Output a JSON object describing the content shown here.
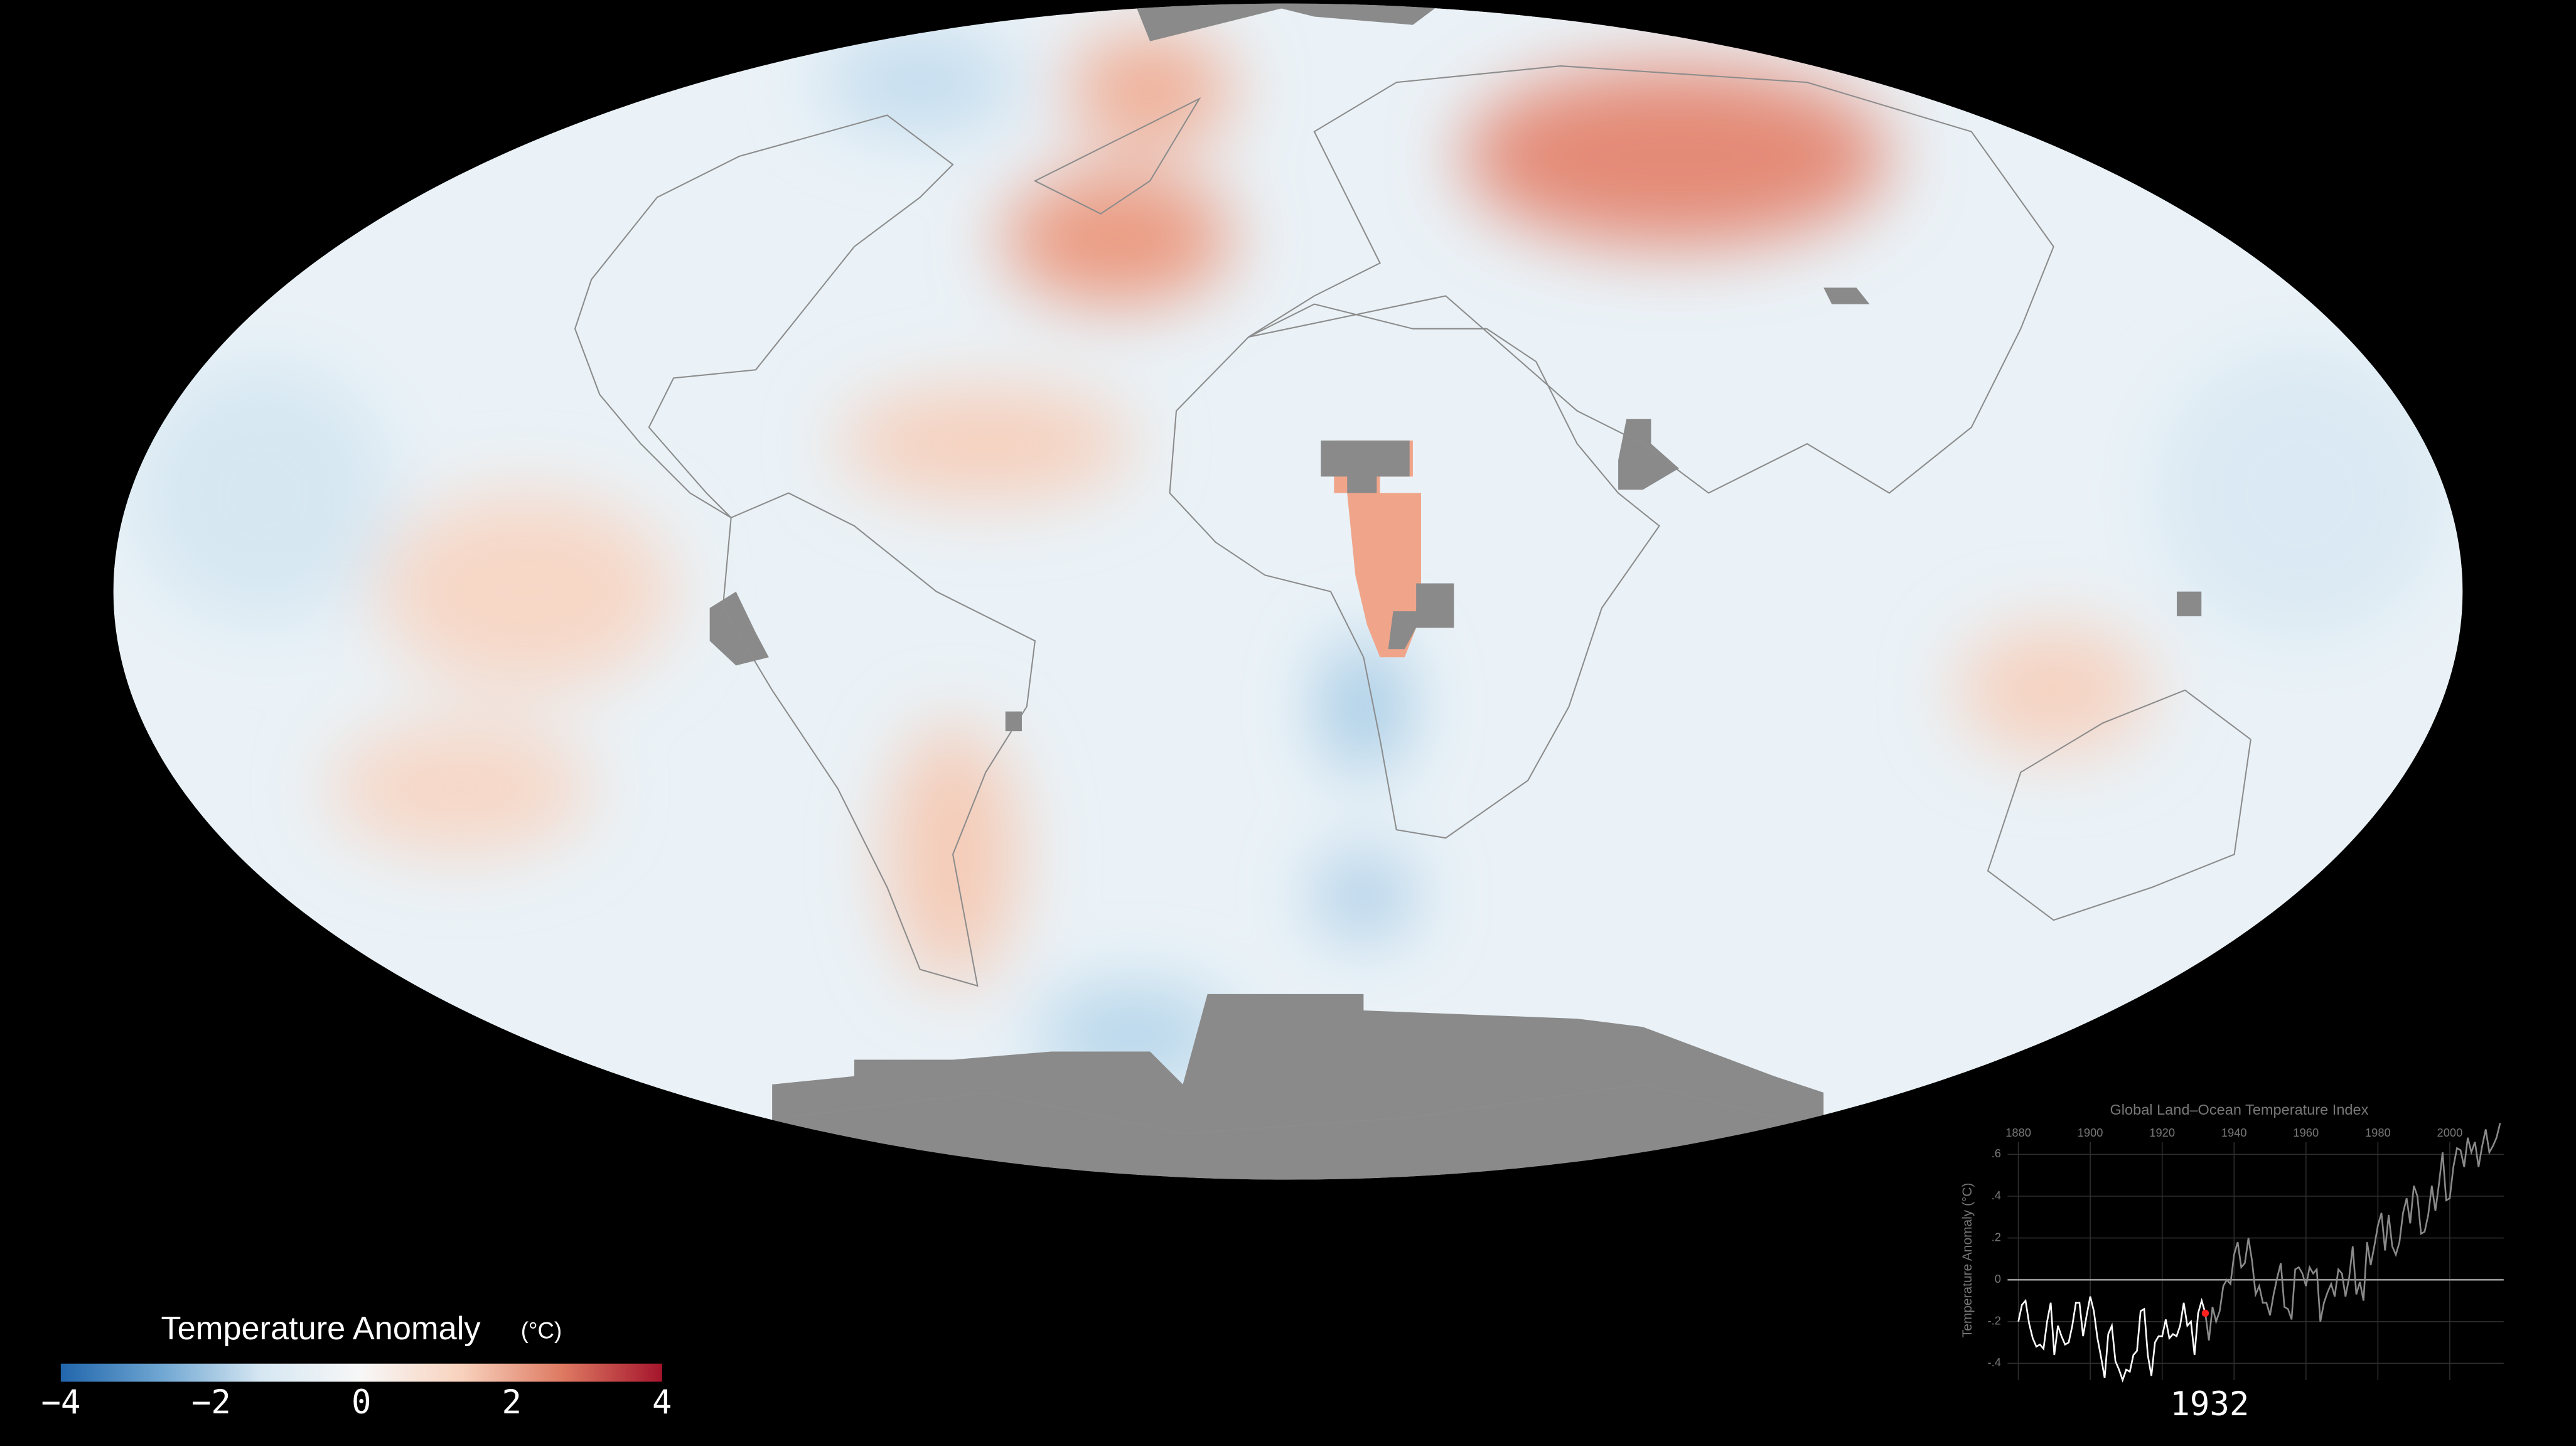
{
  "legend": {
    "title": "Temperature Anomaly",
    "unit": "(°C)",
    "clim": [
      -4,
      4
    ],
    "colors": [
      "#2166ac",
      "#6fa6d2",
      "#d6e7f2",
      "#f7f7f7",
      "#f8d2bd",
      "#de7a62",
      "#a5152c"
    ],
    "ticks": [
      {
        "value": -4,
        "label": "−4"
      },
      {
        "value": -2,
        "label": "−2"
      },
      0,
      2,
      4
    ]
  },
  "year": "1932",
  "chart_data": {
    "type": "line",
    "title": "Global Land–Ocean Temperature Index",
    "y_label": "Temperature Anomaly (°C)",
    "xlim": [
      1877,
      2015
    ],
    "xticks": [
      1880,
      1900,
      1920,
      1940,
      1960,
      1980,
      2000
    ],
    "ylim": [
      -0.48,
      0.66
    ],
    "yticks": [
      {
        "value": -0.4,
        "label": "-.4"
      },
      {
        "value": -0.2,
        "label": "-.2"
      },
      0,
      {
        "value": 0.2,
        "label": ".2"
      },
      {
        "value": 0.4,
        "label": ".4"
      },
      {
        "value": 0.6,
        "label": ".6"
      }
    ],
    "grid": true,
    "highlight_color": "#ff2020",
    "series": [
      {
        "color": "#ffffff",
        "later_color": "#8a8a8a",
        "x": [
          1880,
          1881,
          1882,
          1883,
          1884,
          1885,
          1886,
          1887,
          1888,
          1889,
          1890,
          1891,
          1892,
          1893,
          1894,
          1895,
          1896,
          1897,
          1898,
          1899,
          1900,
          1901,
          1902,
          1903,
          1904,
          1905,
          1906,
          1907,
          1908,
          1909,
          1910,
          1911,
          1912,
          1913,
          1914,
          1915,
          1916,
          1917,
          1918,
          1919,
          1920,
          1921,
          1922,
          1923,
          1924,
          1925,
          1926,
          1927,
          1928,
          1929,
          1930,
          1931,
          1932,
          1933,
          1934,
          1935,
          1936,
          1937,
          1938,
          1939,
          1940,
          1941,
          1942,
          1943,
          1944,
          1945,
          1946,
          1947,
          1948,
          1949,
          1950,
          1951,
          1952,
          1953,
          1954,
          1955,
          1956,
          1957,
          1958,
          1959,
          1960,
          1961,
          1962,
          1963,
          1964,
          1965,
          1966,
          1967,
          1968,
          1969,
          1970,
          1971,
          1972,
          1973,
          1974,
          1975,
          1976,
          1977,
          1978,
          1979,
          1980,
          1981,
          1982,
          1983,
          1984,
          1985,
          1986,
          1987,
          1988,
          1989,
          1990,
          1991,
          1992,
          1993,
          1994,
          1995,
          1996,
          1997,
          1998,
          1999,
          2000,
          2001,
          2002,
          2003,
          2004,
          2005,
          2006,
          2007,
          2008,
          2009,
          2010,
          2011,
          2012,
          2013,
          2014
        ],
        "values": [
          -0.2,
          -0.12,
          -0.1,
          -0.21,
          -0.28,
          -0.32,
          -0.31,
          -0.33,
          -0.2,
          -0.11,
          -0.36,
          -0.22,
          -0.27,
          -0.31,
          -0.3,
          -0.22,
          -0.11,
          -0.11,
          -0.27,
          -0.17,
          -0.08,
          -0.15,
          -0.28,
          -0.37,
          -0.47,
          -0.26,
          -0.22,
          -0.39,
          -0.43,
          -0.48,
          -0.43,
          -0.44,
          -0.36,
          -0.34,
          -0.15,
          -0.14,
          -0.36,
          -0.46,
          -0.3,
          -0.27,
          -0.27,
          -0.19,
          -0.28,
          -0.26,
          -0.27,
          -0.22,
          -0.11,
          -0.22,
          -0.2,
          -0.36,
          -0.16,
          -0.1,
          -0.16,
          -0.29,
          -0.13,
          -0.2,
          -0.15,
          -0.03,
          0,
          -0.02,
          0.12,
          0.18,
          0.06,
          0.08,
          0.2,
          0.09,
          -0.07,
          -0.03,
          -0.11,
          -0.11,
          -0.17,
          -0.07,
          0.01,
          0.08,
          -0.13,
          -0.14,
          -0.19,
          0.05,
          0.06,
          0.03,
          -0.03,
          0.06,
          0.03,
          0.05,
          -0.2,
          -0.11,
          -0.06,
          -0.02,
          -0.08,
          0.05,
          0.03,
          -0.08,
          0.01,
          0.16,
          -0.07,
          -0.01,
          -0.1,
          0.18,
          0.07,
          0.16,
          0.26,
          0.32,
          0.14,
          0.31,
          0.16,
          0.12,
          0.18,
          0.32,
          0.39,
          0.27,
          0.45,
          0.4,
          0.22,
          0.23,
          0.31,
          0.45,
          0.33,
          0.46,
          0.61,
          0.38,
          0.39,
          0.54,
          0.63,
          0.62,
          0.54,
          0.68,
          0.61,
          0.66,
          0.54,
          0.64,
          0.72,
          0.61,
          0.64,
          0.68,
          0.75
        ]
      }
    ]
  }
}
